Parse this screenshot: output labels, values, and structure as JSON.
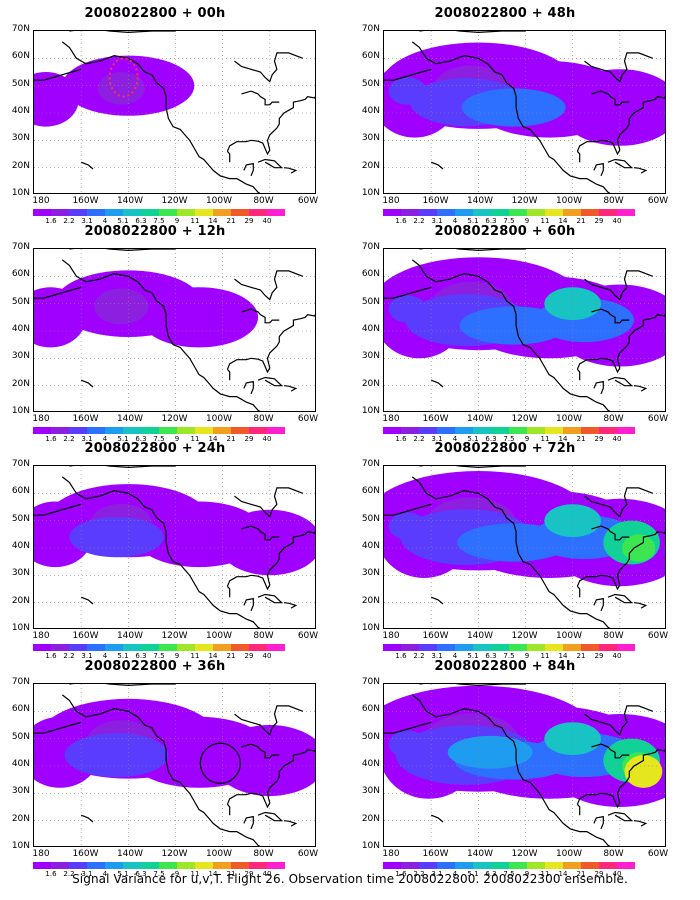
{
  "panels": [
    {
      "title": "2008022800 + 00h",
      "level": 0
    },
    {
      "title": "2008022800 + 12h",
      "level": 1
    },
    {
      "title": "2008022800 + 24h",
      "level": 2
    },
    {
      "title": "2008022800 + 36h",
      "level": 3
    },
    {
      "title": "2008022800 + 48h",
      "level": 4
    },
    {
      "title": "2008022800 + 60h",
      "level": 5
    },
    {
      "title": "2008022800 + 72h",
      "level": 6
    },
    {
      "title": "2008022800 + 84h",
      "level": 7
    }
  ],
  "lat_labels": [
    "70N",
    "60N",
    "50N",
    "40N",
    "30N",
    "20N",
    "10N"
  ],
  "lon_labels": [
    "180",
    "160W",
    "140W",
    "120W",
    "100W",
    "80W",
    "60W"
  ],
  "colorbar": {
    "labels": [
      "1.6",
      "2.2",
      "3.1",
      "4",
      "5.1",
      "6.3",
      "7.5",
      "9",
      "11",
      "14",
      "21",
      "29",
      "40"
    ],
    "colors": [
      "#a000ff",
      "#8c1fe0",
      "#5a3cff",
      "#2d6fff",
      "#1e9cf0",
      "#18c3c3",
      "#10d296",
      "#3ce650",
      "#a0e628",
      "#e6e61e",
      "#f0a01e",
      "#f05a28",
      "#ff2878",
      "#ff1fd0"
    ]
  },
  "caption": "Signal Variance for u,v,T. Flight 26. Observation time 2008022800. 2008022300 ensemble."
}
